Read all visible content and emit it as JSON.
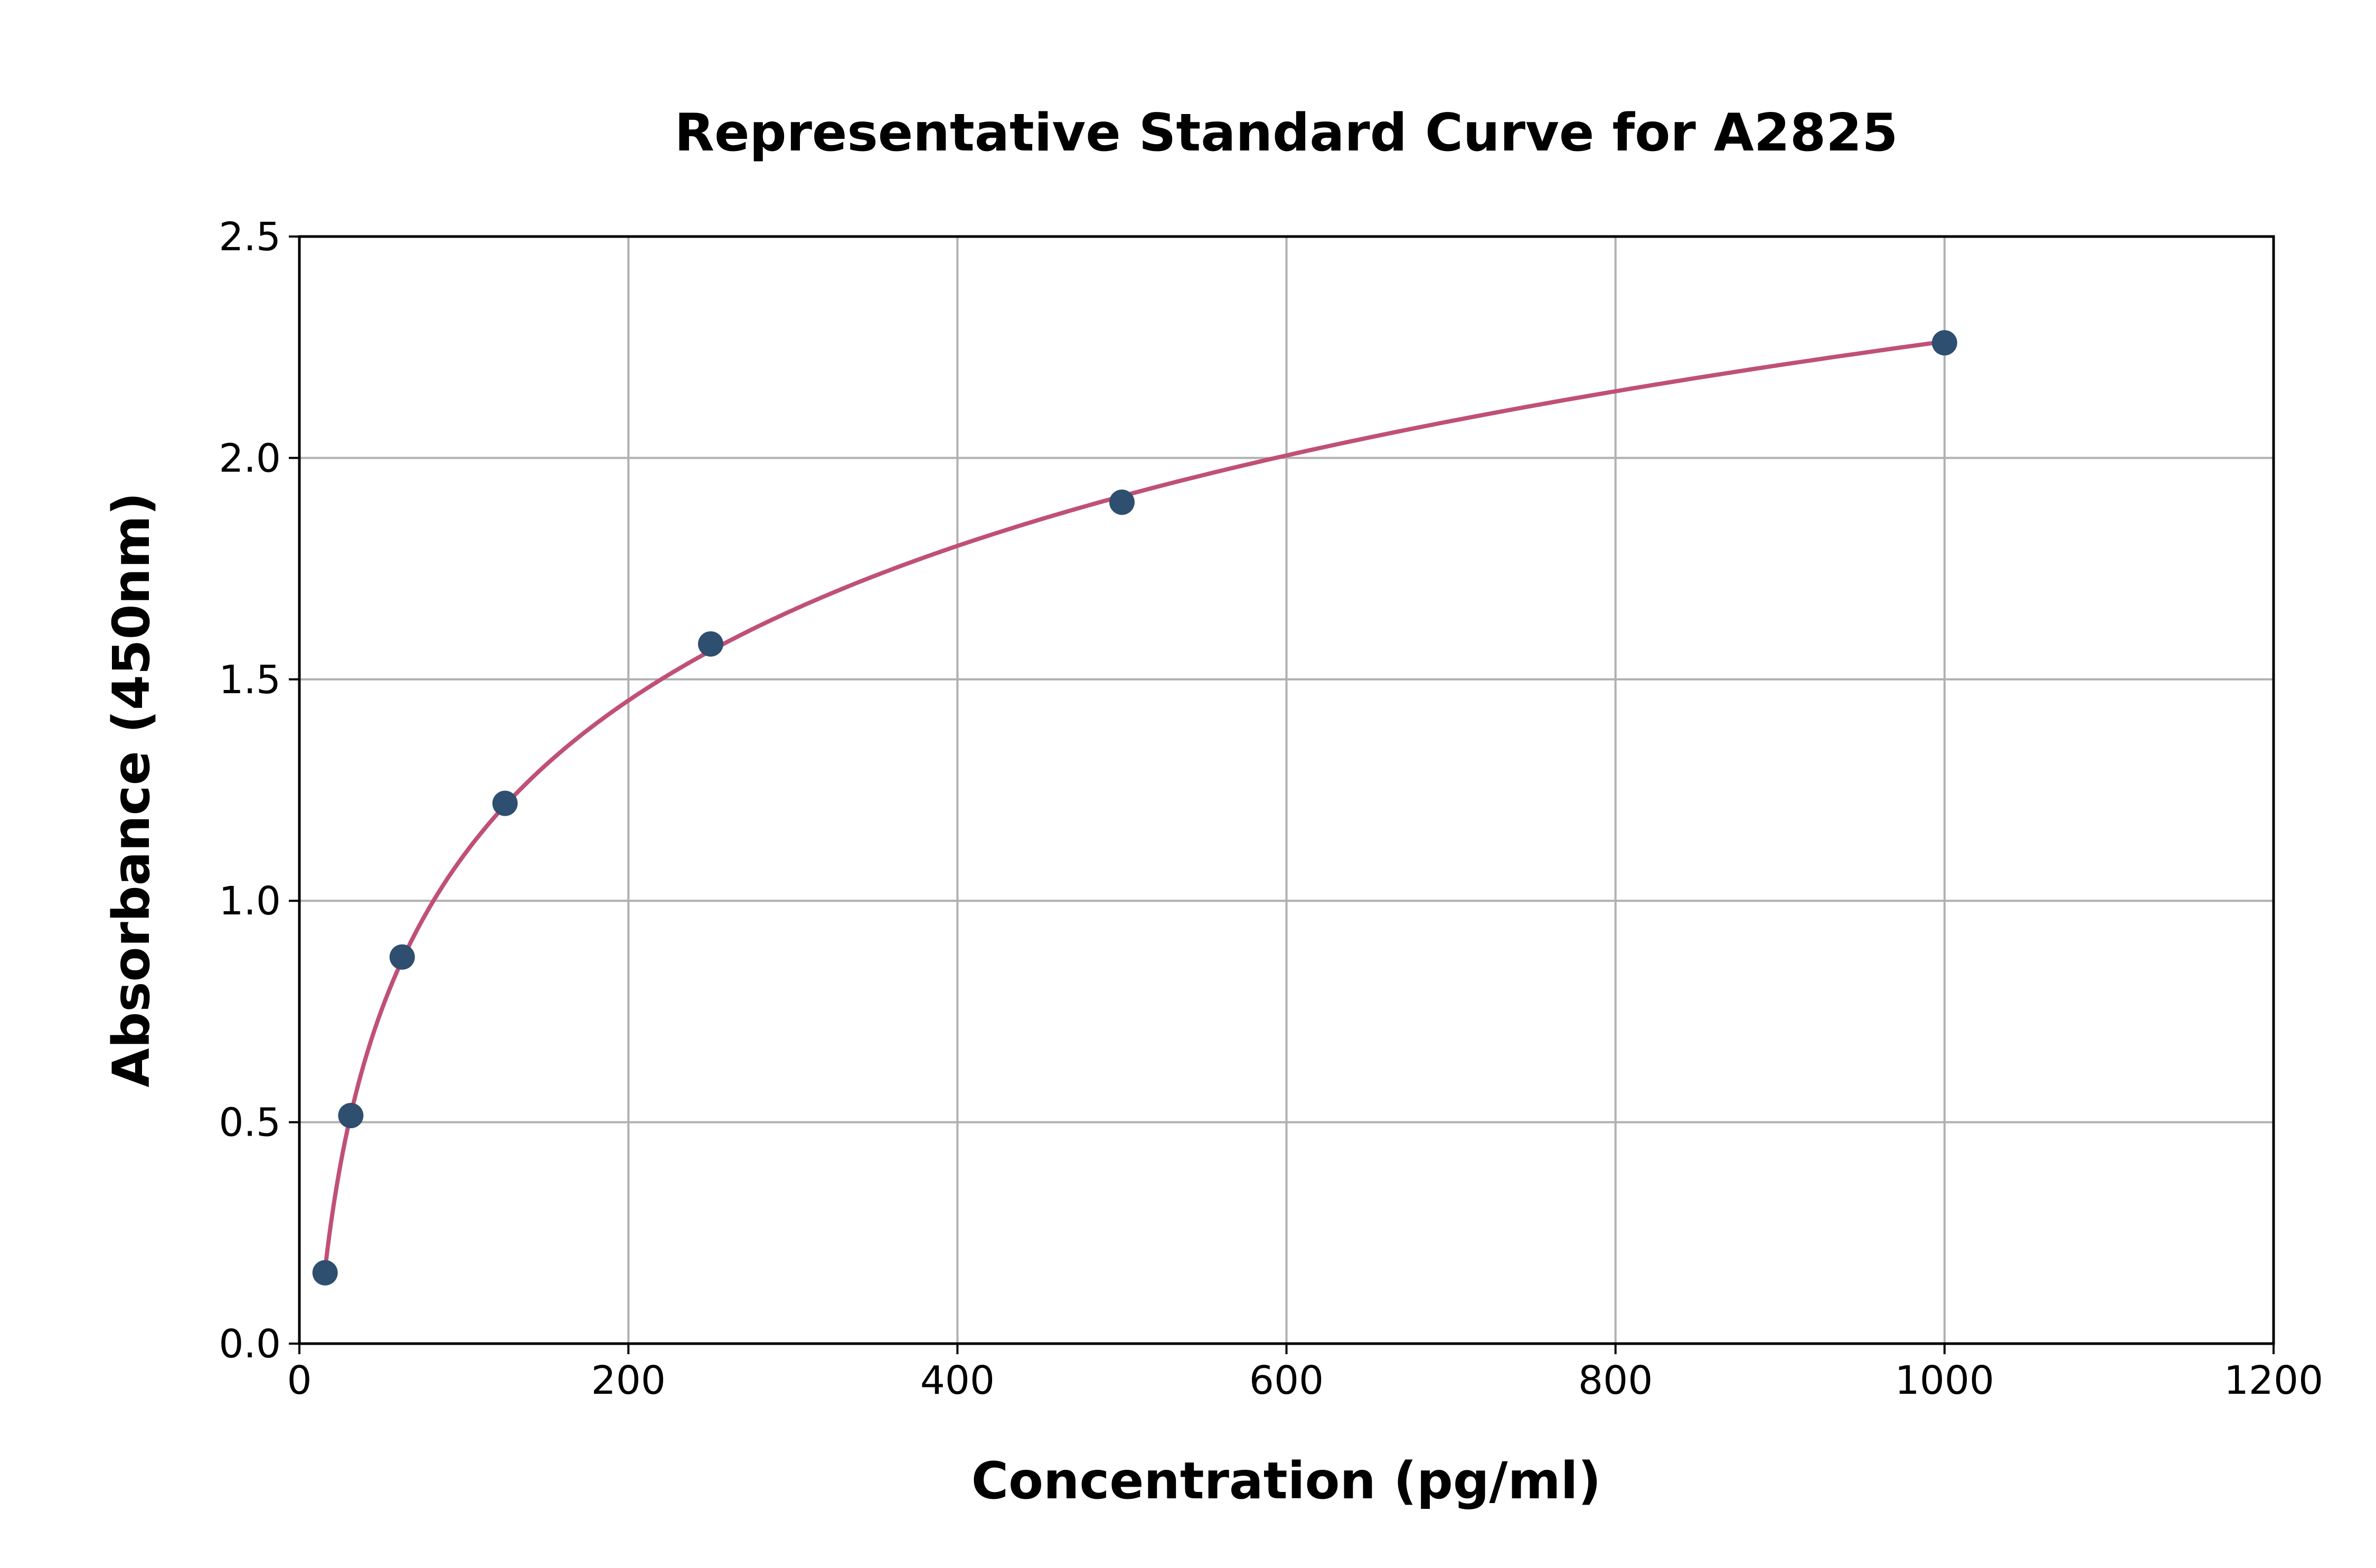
{
  "chart_data": {
    "type": "scatter",
    "title": "Representative Standard Curve for A2825",
    "xlabel": "Concentration (pg/ml)",
    "ylabel": "Absorbance (450nm)",
    "xlim": [
      0,
      1200
    ],
    "ylim": [
      0,
      2.5
    ],
    "x_ticks": [
      "0",
      "200",
      "400",
      "600",
      "800",
      "1000",
      "1200"
    ],
    "y_ticks": [
      "0.0",
      "0.5",
      "1.0",
      "1.5",
      "2.0",
      "2.5"
    ],
    "grid": true,
    "series": [
      {
        "x": [
          15.625,
          31.25,
          62.5,
          125,
          250,
          500,
          1000
        ],
        "y": [
          0.16,
          0.515,
          0.873,
          1.22,
          1.58,
          1.9,
          2.26
        ],
        "marker_color": "#2e4f6f",
        "fit_line_color": "#c05077"
      }
    ]
  }
}
